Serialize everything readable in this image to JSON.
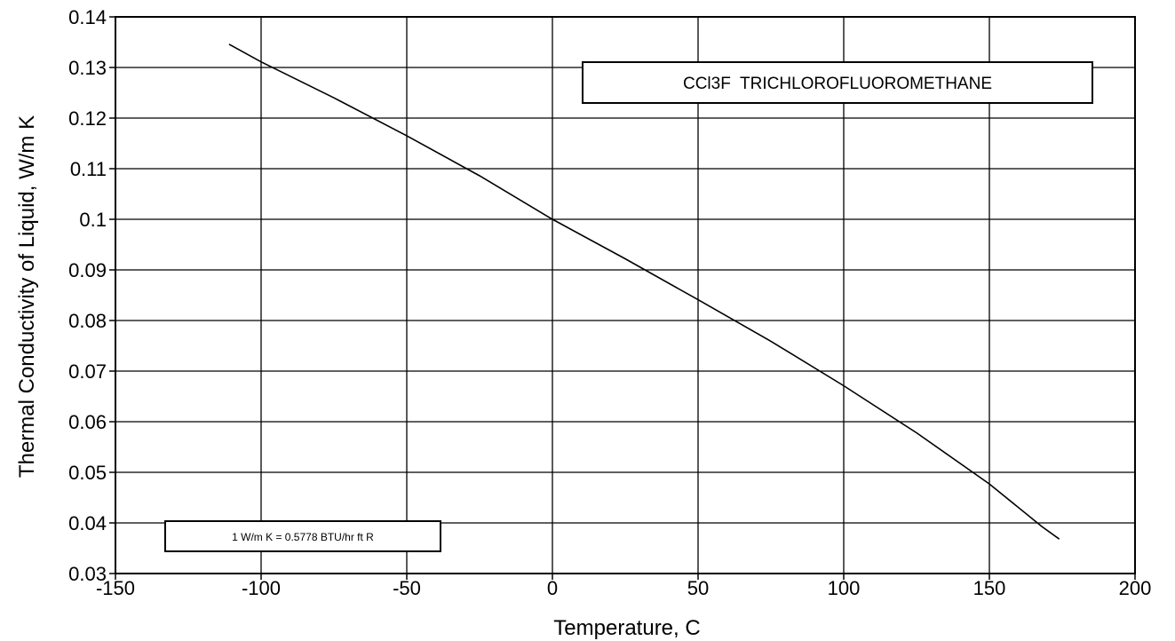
{
  "chart_data": {
    "type": "line",
    "title": "CCl3F  TRICHLOROFLUOROMETHANE",
    "xlabel": "Temperature, C",
    "ylabel": "Thermal Conductivity of Liquid, W/m K",
    "xlim": [
      -150,
      200
    ],
    "ylim": [
      0.03,
      0.14
    ],
    "x_ticks": [
      -150,
      -100,
      -50,
      0,
      50,
      100,
      150,
      200
    ],
    "x_tick_labels": [
      "-150",
      "-100",
      "-50",
      "0",
      "50",
      "100",
      "150",
      "200"
    ],
    "y_ticks": [
      0.03,
      0.04,
      0.05,
      0.06,
      0.07,
      0.08,
      0.09,
      0.1,
      0.11,
      0.12,
      0.13,
      0.14
    ],
    "y_tick_labels": [
      "0.03",
      "0.04",
      "0.05",
      "0.06",
      "0.07",
      "0.08",
      "0.09",
      "0.1",
      "0.11",
      "0.12",
      "0.13",
      "0.14"
    ],
    "grid": true,
    "note": "1 W/m K = 0.5778 BTU/hr ft R",
    "series": [
      {
        "x": [
          -111,
          -100,
          -75,
          -50,
          -25,
          0,
          25,
          50,
          75,
          100,
          125,
          150,
          168,
          174
        ],
        "y": [
          0.1346,
          0.1311,
          0.124,
          0.1165,
          0.1086,
          0.1,
          0.0922,
          0.0841,
          0.0759,
          0.0671,
          0.0578,
          0.0477,
          0.0393,
          0.0368
        ]
      }
    ]
  }
}
